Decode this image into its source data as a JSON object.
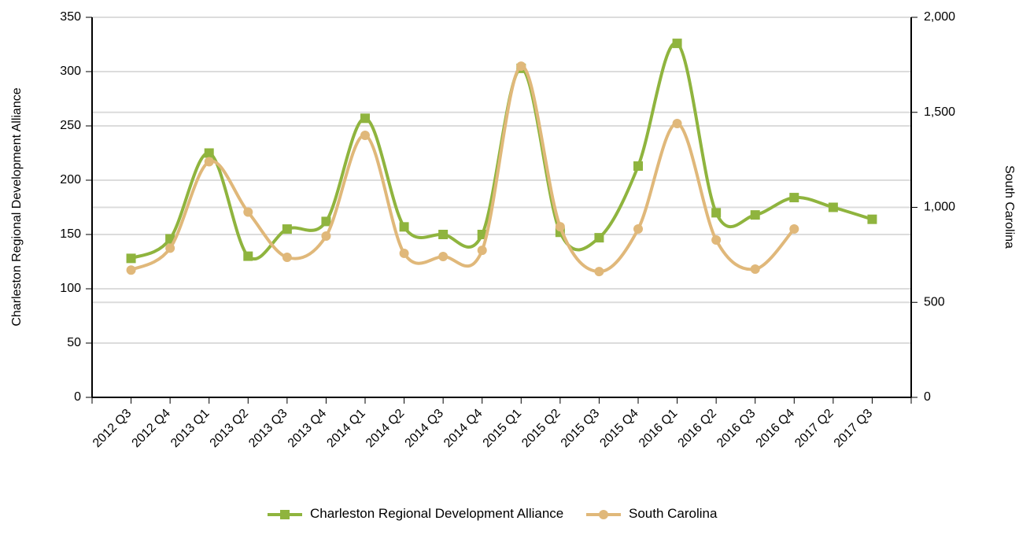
{
  "chart_data": {
    "type": "line",
    "y_label": "Charleston Regional Development Alliance",
    "y2_label": "South Carolina",
    "categories": [
      "2012 Q3",
      "2012 Q4",
      "2013 Q1",
      "2013 Q2",
      "2013 Q3",
      "2013 Q4",
      "2014 Q1",
      "2014 Q2",
      "2014 Q3",
      "2014 Q4",
      "2015 Q1",
      "2015 Q2",
      "2015 Q3",
      "2015 Q4",
      "2016 Q1",
      "2016 Q2",
      "2016 Q3",
      "2016 Q4",
      "2017 Q2",
      "2017 Q3"
    ],
    "series": [
      {
        "name": "Charleston Regional Development Alliance",
        "color": "#8fb43e",
        "marker": "square",
        "axis": "y",
        "values": [
          128,
          146,
          225,
          130,
          155,
          162,
          257,
          157,
          150,
          150,
          303,
          152,
          147,
          213,
          326,
          170,
          168,
          184,
          175,
          164
        ]
      },
      {
        "name": "South Carolina",
        "color": "#e0b87a",
        "marker": "circle",
        "axis": "y2",
        "values": [
          670,
          785,
          1240,
          975,
          737,
          849,
          1379,
          758,
          741,
          774,
          1743,
          898,
          662,
          886,
          1441,
          828,
          675,
          886,
          null,
          null
        ]
      }
    ],
    "ylim": [
      0,
      350
    ],
    "yticks": [
      0,
      50,
      100,
      150,
      200,
      250,
      300,
      350
    ],
    "y2lim": [
      0,
      2000
    ],
    "y2ticks": [
      0,
      500,
      {
        "value": 1000,
        "label": "1,000"
      },
      {
        "value": 1500,
        "label": "1,500"
      },
      {
        "value": 2000,
        "label": "2,000"
      }
    ],
    "grid": true,
    "smooth": true,
    "legend": "bottom"
  }
}
